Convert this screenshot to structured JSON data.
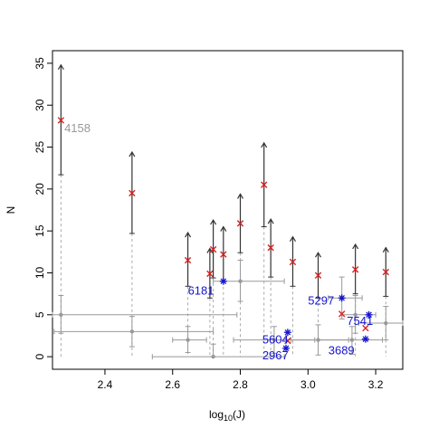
{
  "chart_data": {
    "type": "scatter",
    "title": "",
    "xlabel": "log10(J)",
    "ylabel": "N",
    "xlim": [
      2.245,
      3.28
    ],
    "ylim": [
      -1.5,
      36.5
    ],
    "x_ticks": [
      "2.4",
      "2.6",
      "2.8",
      "3.0",
      "3.2"
    ],
    "y_ticks": [
      "0",
      "5",
      "10",
      "15",
      "20",
      "25",
      "30",
      "35"
    ],
    "grid": false,
    "legend": "none",
    "colors": {
      "upper_limit": "#333333",
      "cross": "#d92020",
      "star": "#1515d0",
      "grey": "#999999",
      "dotted_link": "#aaaaaa"
    },
    "upper_limits": [
      {
        "x": 2.27,
        "y": 28.2,
        "lo": 21.7,
        "hi": 34.8
      },
      {
        "x": 2.48,
        "y": 19.5,
        "lo": 14.7,
        "hi": 24.4
      },
      {
        "x": 2.645,
        "y": 11.5,
        "lo": 8.4,
        "hi": 14.8
      },
      {
        "x": 2.71,
        "y": 9.9,
        "lo": 7.0,
        "hi": 12.9
      },
      {
        "x": 2.72,
        "y": 12.8,
        "lo": 9.4,
        "hi": 16.3
      },
      {
        "x": 2.75,
        "y": 12.2,
        "lo": 9.0,
        "hi": 15.5
      },
      {
        "x": 2.8,
        "y": 15.9,
        "lo": 12.4,
        "hi": 19.4
      },
      {
        "x": 2.87,
        "y": 20.5,
        "lo": 15.5,
        "hi": 25.5
      },
      {
        "x": 2.89,
        "y": 13.0,
        "lo": 9.5,
        "hi": 16.4
      },
      {
        "x": 2.955,
        "y": 11.3,
        "lo": 8.4,
        "hi": 14.3
      },
      {
        "x": 3.03,
        "y": 9.7,
        "lo": 7.0,
        "hi": 12.4
      },
      {
        "x": 3.14,
        "y": 10.4,
        "lo": 7.5,
        "hi": 13.4
      },
      {
        "x": 3.23,
        "y": 10.1,
        "lo": 7.2,
        "hi": 13.0
      }
    ],
    "crosses_extra": [
      {
        "x": 3.1,
        "y": 5.1
      },
      {
        "x": 2.94,
        "y": 1.9
      },
      {
        "x": 3.17,
        "y": 3.4
      }
    ],
    "stars": [
      {
        "x": 2.75,
        "y": 9.0
      },
      {
        "x": 3.1,
        "y": 7.0
      },
      {
        "x": 2.94,
        "y": 2.9
      },
      {
        "x": 2.935,
        "y": 1.0
      },
      {
        "x": 3.18,
        "y": 5.0
      },
      {
        "x": 3.17,
        "y": 2.1
      }
    ],
    "grey_points": [
      {
        "x": 2.27,
        "y": 5.0,
        "xerr": [
          2.245,
          2.79
        ],
        "yerr": [
          2.8,
          7.3
        ]
      },
      {
        "x": 2.48,
        "y": 3.0,
        "xerr": [
          2.25,
          2.72
        ],
        "yerr": [
          1.2,
          4.8
        ]
      },
      {
        "x": 2.645,
        "y": 2.0,
        "xerr": [
          2.6,
          2.7
        ],
        "yerr": [
          0.5,
          3.6
        ]
      },
      {
        "x": 2.72,
        "y": 0.0,
        "xerr": [
          2.54,
          2.93
        ],
        "yerr": [
          0.0,
          1.5
        ]
      },
      {
        "x": 2.8,
        "y": 9.0,
        "xerr": [
          2.72,
          2.93
        ],
        "yerr": [
          6.6,
          11.5
        ]
      },
      {
        "x": 2.9,
        "y": 2.0,
        "xerr": [
          2.78,
          3.02
        ],
        "yerr": [
          0.4,
          3.6
        ]
      },
      {
        "x": 3.03,
        "y": 2.0,
        "xerr": [
          2.95,
          3.12
        ],
        "yerr": [
          0.2,
          3.8
        ]
      },
      {
        "x": 3.1,
        "y": 7.0,
        "xerr": [
          3.06,
          3.16
        ],
        "yerr": [
          4.5,
          9.5
        ]
      },
      {
        "x": 3.13,
        "y": 2.0,
        "xerr": [
          3.03,
          3.22
        ],
        "yerr": [
          0.3,
          3.6
        ]
      },
      {
        "x": 3.14,
        "y": 5.0,
        "xerr": [
          3.1,
          3.2
        ],
        "yerr": [
          2.8,
          7.3
        ]
      },
      {
        "x": 3.23,
        "y": 4.0,
        "xerr": [
          3.15,
          3.28
        ],
        "yerr": [
          2.0,
          6.0
        ]
      }
    ],
    "annotations": [
      {
        "text": "4158",
        "x": 2.28,
        "y": 26.8,
        "color": "#999999"
      },
      {
        "text": "6181",
        "x": 2.645,
        "y": 7.4,
        "color": "#1515d0"
      },
      {
        "text": "5297",
        "x": 3.0,
        "y": 6.2,
        "color": "#1515d0"
      },
      {
        "text": "7541",
        "x": 3.115,
        "y": 3.8,
        "color": "#1515d0"
      },
      {
        "text": "5604",
        "x": 2.865,
        "y": 1.6,
        "color": "#1515d0"
      },
      {
        "text": "2967",
        "x": 2.865,
        "y": -0.3,
        "color": "#1515d0"
      },
      {
        "text": "3689",
        "x": 3.06,
        "y": 0.3,
        "color": "#1515d0"
      }
    ]
  }
}
